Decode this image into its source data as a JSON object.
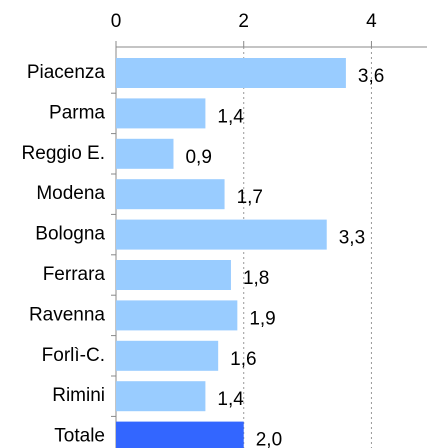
{
  "chart_data": {
    "type": "bar",
    "orientation": "horizontal",
    "categories": [
      "Piacenza",
      "Parma",
      "Reggio E.",
      "Modena",
      "Bologna",
      "Ferrara",
      "Ravenna",
      "Forlì-C.",
      "Rimini",
      "Totale"
    ],
    "values": [
      3.6,
      1.4,
      0.9,
      1.7,
      3.3,
      1.8,
      1.9,
      1.6,
      1.4,
      2.0
    ],
    "value_labels": [
      "3,6",
      "1,4",
      "0,9",
      "1,7",
      "3,3",
      "1,8",
      "1,9",
      "1,6",
      "1,4",
      "2,0"
    ],
    "colors": [
      "#99ccff",
      "#99ccff",
      "#99ccff",
      "#99ccff",
      "#99ccff",
      "#99ccff",
      "#99ccff",
      "#99ccff",
      "#99ccff",
      "#3366ff"
    ],
    "xlim": [
      0,
      4.87
    ],
    "xticks": [
      0,
      2,
      4
    ],
    "grid": true
  }
}
